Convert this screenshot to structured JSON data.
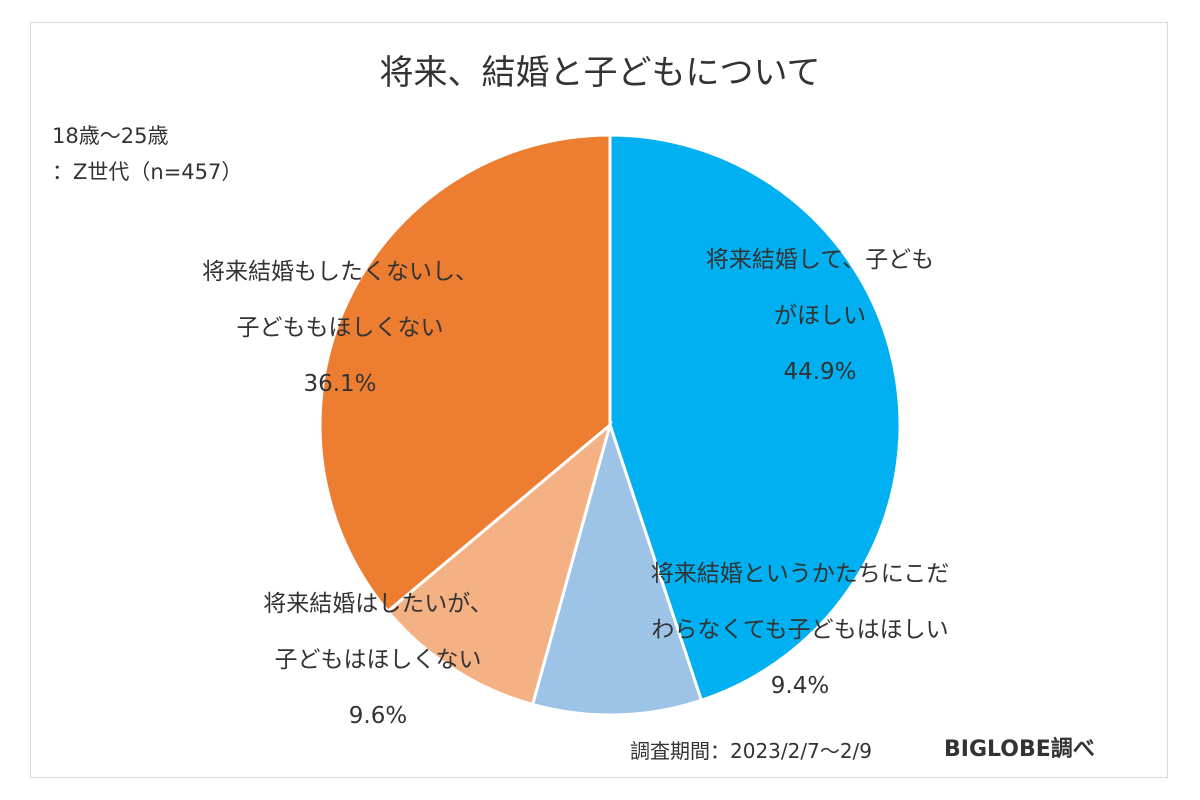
{
  "title": "将来、結婚と子どもについて",
  "sample": {
    "line1": "18歳～25歳",
    "line2": "：Z世代（n=457）"
  },
  "chart_data": {
    "type": "pie",
    "start_angle_deg": 0,
    "direction": "clockwise",
    "slices": [
      {
        "label_lines": [
          "将来結婚して、子ども",
          "がほしい"
        ],
        "value": 44.9,
        "value_label": "44.9%",
        "color": "#00B0F0"
      },
      {
        "label_lines": [
          "将来結婚というかたちにこだ",
          "わらなくても子どもはほしい"
        ],
        "value": 9.4,
        "value_label": "9.4%",
        "color": "#9DC3E6"
      },
      {
        "label_lines": [
          "将来結婚はしたいが、",
          "子どもはほしくない"
        ],
        "value": 9.6,
        "value_label": "9.6%",
        "color": "#F4B183"
      },
      {
        "label_lines": [
          "将来結婚もしたくないし、",
          "子どももほしくない"
        ],
        "value": 36.1,
        "value_label": "36.1%",
        "color": "#ED7D31"
      }
    ]
  },
  "footer": {
    "period": "調査期間：2023/2/7～2/9",
    "source": "BIGLOBE調べ"
  }
}
